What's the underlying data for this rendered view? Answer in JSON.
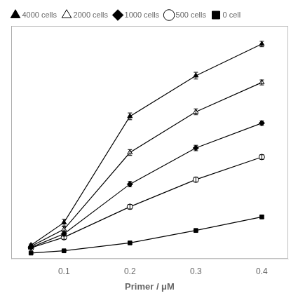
{
  "chart_data": {
    "type": "line",
    "x": [
      0.05,
      0.1,
      0.2,
      0.3,
      0.4
    ],
    "series": [
      {
        "name": "4000 cells",
        "values": [
          0.03,
          0.13,
          0.6,
          0.78,
          0.92
        ],
        "errors": [
          0.005,
          0.015,
          0.015,
          0.015,
          0.012
        ],
        "marker": "triangle",
        "color": "black"
      },
      {
        "name": "2000 cells",
        "values": [
          0.025,
          0.1,
          0.44,
          0.62,
          0.75
        ],
        "errors": [
          0.004,
          0.012,
          0.013,
          0.013,
          0.011
        ],
        "marker": "triangle-open",
        "color": "black"
      },
      {
        "name": "1000 cells",
        "values": [
          0.02,
          0.08,
          0.3,
          0.46,
          0.57
        ],
        "errors": [
          0.003,
          0.01,
          0.012,
          0.012,
          0.01
        ],
        "marker": "diamond",
        "color": "black"
      },
      {
        "name": "500 cells",
        "values": [
          0.018,
          0.065,
          0.2,
          0.32,
          0.42
        ],
        "errors": [
          0.003,
          0.009,
          0.01,
          0.011,
          0.01
        ],
        "marker": "circle-open",
        "color": "black"
      },
      {
        "name": "0 cell",
        "values": [
          -0.005,
          0.005,
          0.04,
          0.095,
          0.155
        ],
        "errors": [
          0.002,
          0.003,
          0.006,
          0.007,
          0.007
        ],
        "marker": "square",
        "color": "black"
      }
    ],
    "x_label": "Primer / μM",
    "xlim": [
      0.02,
      0.44
    ],
    "xticks": [
      0.1,
      0.2,
      0.3,
      0.4
    ],
    "ylim": [
      -0.03,
      1.0
    ],
    "tick_labels": "x",
    "grid": false,
    "legend": "upper left"
  }
}
